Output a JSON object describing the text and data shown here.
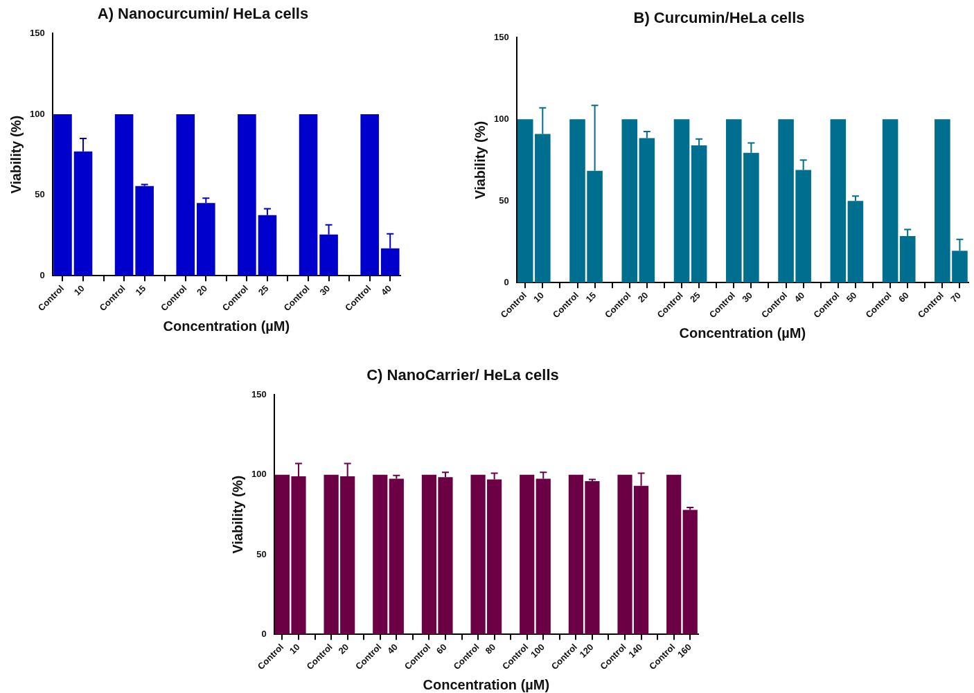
{
  "chart_data": [
    {
      "type": "bar",
      "title": "A) Nanocurcumin/ HeLa cells",
      "xlabel": "Concentration (µM)",
      "ylabel": "Viability (%)",
      "color": "#0000cc",
      "ylim": [
        0,
        150
      ],
      "yticks": [
        0,
        50,
        100,
        150
      ],
      "categories": [
        "Control",
        "10",
        null,
        "Control",
        "15",
        null,
        "Control",
        "20",
        null,
        "Control",
        "25",
        null,
        "Control",
        "30",
        null,
        "Control",
        "40"
      ],
      "values": [
        100,
        77,
        null,
        100,
        55.5,
        null,
        100,
        45,
        null,
        100,
        37.5,
        null,
        100,
        25.5,
        null,
        100,
        17
      ],
      "errors": [
        null,
        8,
        null,
        null,
        1,
        null,
        null,
        3,
        null,
        null,
        4,
        null,
        null,
        6,
        null,
        null,
        9
      ]
    },
    {
      "type": "bar",
      "title": "B) Curcumin/HeLa cells",
      "xlabel": "Concentration (µM)",
      "ylabel": "Viability (%)",
      "color": "#006e8f",
      "ylim": [
        0,
        150
      ],
      "yticks": [
        0,
        50,
        100,
        150
      ],
      "categories": [
        "Control",
        "10",
        null,
        "Control",
        "15",
        null,
        "Control",
        "20",
        null,
        "Control",
        "25",
        null,
        "Control",
        "30",
        null,
        "Control",
        "40",
        null,
        "Control",
        "50",
        null,
        "Control",
        "60",
        null,
        "Control",
        "70"
      ],
      "values": [
        100,
        91,
        null,
        100,
        68.5,
        null,
        100,
        88.5,
        null,
        100,
        84,
        null,
        100,
        79.5,
        null,
        100,
        69,
        null,
        100,
        50,
        null,
        100,
        28.5,
        null,
        100,
        19.5
      ],
      "errors": [
        null,
        16,
        null,
        null,
        40,
        null,
        null,
        4,
        null,
        null,
        4,
        null,
        null,
        6,
        null,
        null,
        6,
        null,
        null,
        3,
        null,
        null,
        4,
        null,
        null,
        7
      ]
    },
    {
      "type": "bar",
      "title": "C) NanoCarrier/ HeLa cells",
      "xlabel": "Concentration (µM)",
      "ylabel": "Viability (%)",
      "color": "#6b0045",
      "ylim": [
        0,
        150
      ],
      "yticks": [
        0,
        50,
        100,
        150
      ],
      "categories": [
        "Control",
        "10",
        null,
        "Control",
        "20",
        null,
        "Control",
        "40",
        null,
        "Control",
        "60",
        null,
        "Control",
        "80",
        null,
        "Control",
        "100",
        null,
        "Control",
        "120",
        null,
        "Control",
        "140",
        null,
        "Control",
        "160"
      ],
      "values": [
        100,
        99,
        null,
        100,
        99,
        null,
        100,
        97.5,
        null,
        100,
        98.5,
        null,
        100,
        97,
        null,
        100,
        97.5,
        null,
        100,
        96,
        null,
        100,
        93,
        null,
        100,
        78
      ],
      "errors": [
        null,
        8,
        null,
        null,
        8,
        null,
        null,
        2,
        null,
        null,
        3,
        null,
        null,
        4,
        null,
        null,
        4,
        null,
        null,
        1,
        null,
        null,
        8,
        null,
        null,
        1.5
      ]
    }
  ]
}
